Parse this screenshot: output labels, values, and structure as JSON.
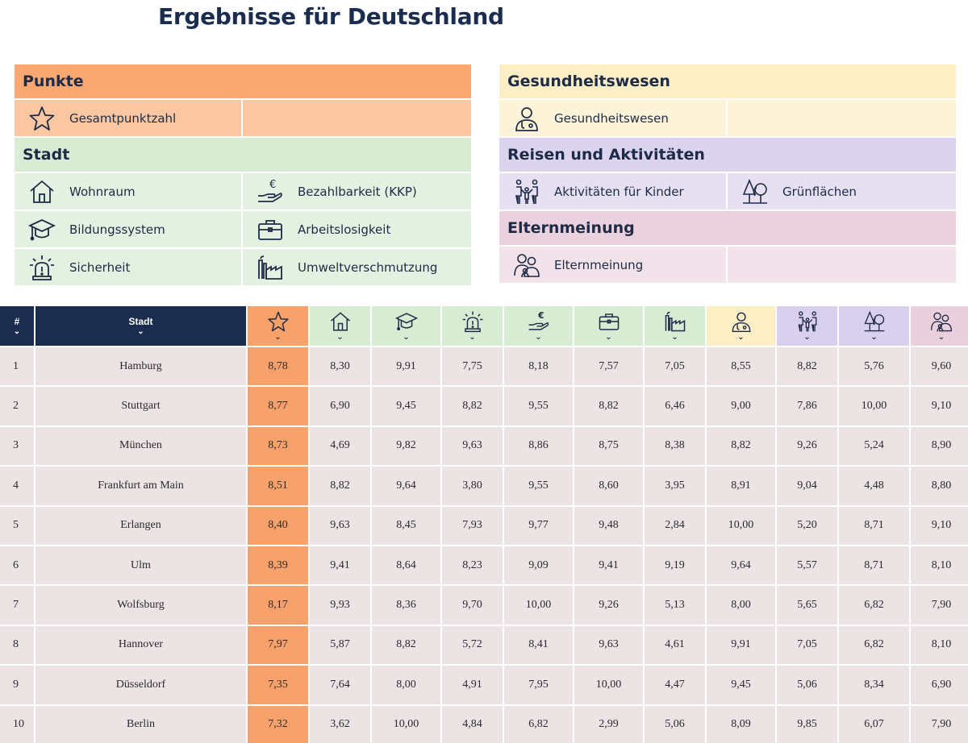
{
  "title": "Ergebnisse für Deutschland",
  "legend": {
    "punkte": {
      "heading": "Punkte",
      "items": [
        "Gesamtpunktzahl"
      ]
    },
    "stadt": {
      "heading": "Stadt",
      "items": [
        "Wohnraum",
        "Bezahlbarkeit (KKP)",
        "Bildungssystem",
        "Arbeitslosigkeit",
        "Sicherheit",
        "Umweltverschmutzung"
      ]
    },
    "gesundheit": {
      "heading": "Gesundheitswesen",
      "items": [
        "Gesundheitswesen"
      ]
    },
    "reisen": {
      "heading": "Reisen und Aktivitäten",
      "items": [
        "Aktivitäten für Kinder",
        "Grünflächen"
      ]
    },
    "eltern": {
      "heading": "Elternmeinung",
      "items": [
        "Elternmeinung"
      ]
    }
  },
  "table": {
    "header": {
      "rank": "#",
      "city": "Stadt",
      "chevron": "⌄"
    },
    "columns": [
      "star-icon",
      "house-icon",
      "graduation-cap-icon",
      "alarm-light-icon",
      "euro-hand-icon",
      "briefcase-icon",
      "factory-icon",
      "doctor-icon",
      "family-icon",
      "trees-icon",
      "parents-icon"
    ],
    "rows": [
      {
        "rank": "1",
        "city": "Hamburg",
        "values": [
          "8,78",
          "8,30",
          "9,91",
          "7,75",
          "8,18",
          "7,57",
          "7,05",
          "8,55",
          "8,82",
          "5,76",
          "9,60"
        ]
      },
      {
        "rank": "2",
        "city": "Stuttgart",
        "values": [
          "8,77",
          "6,90",
          "9,45",
          "8,82",
          "9,55",
          "8,82",
          "6,46",
          "9,00",
          "7,86",
          "10,00",
          "9,10"
        ]
      },
      {
        "rank": "3",
        "city": "München",
        "values": [
          "8,73",
          "4,69",
          "9,82",
          "9,63",
          "8,86",
          "8,75",
          "8,38",
          "8,82",
          "9,26",
          "5,24",
          "8,90"
        ]
      },
      {
        "rank": "4",
        "city": "Frankfurt am Main",
        "values": [
          "8,51",
          "8,82",
          "9,64",
          "3,80",
          "9,55",
          "8,60",
          "3,95",
          "8,91",
          "9,04",
          "4,48",
          "8,80"
        ]
      },
      {
        "rank": "5",
        "city": "Erlangen",
        "values": [
          "8,40",
          "9,63",
          "8,45",
          "7,93",
          "9,77",
          "9,48",
          "2,84",
          "10,00",
          "5,20",
          "8,71",
          "9,10"
        ]
      },
      {
        "rank": "6",
        "city": "Ulm",
        "values": [
          "8,39",
          "9,41",
          "8,64",
          "8,23",
          "9,09",
          "9,41",
          "9,19",
          "9,64",
          "5,57",
          "8,71",
          "8,10"
        ]
      },
      {
        "rank": "7",
        "city": "Wolfsburg",
        "values": [
          "8,17",
          "9,93",
          "8,36",
          "9,70",
          "10,00",
          "9,26",
          "5,13",
          "8,00",
          "5,65",
          "6,82",
          "7,90"
        ]
      },
      {
        "rank": "8",
        "city": "Hannover",
        "values": [
          "7,97",
          "5,87",
          "8,82",
          "5,72",
          "8,41",
          "9,63",
          "4,61",
          "9,91",
          "7,05",
          "6,82",
          "8,10"
        ]
      },
      {
        "rank": "9",
        "city": "Düsseldorf",
        "values": [
          "7,35",
          "7,64",
          "8,00",
          "4,91",
          "7,95",
          "10,00",
          "4,47",
          "9,45",
          "5,06",
          "8,34",
          "6,90"
        ]
      },
      {
        "rank": "10",
        "city": "Berlin",
        "values": [
          "7,32",
          "3,62",
          "10,00",
          "4,84",
          "6,82",
          "2,99",
          "5,06",
          "8,09",
          "9,85",
          "6,07",
          "7,90"
        ]
      }
    ]
  },
  "colors": {
    "navy": "#1b2d4f",
    "punkte": "#f9a16a",
    "stadt": "#d8ebd3",
    "gesundheit": "#fdeec5",
    "reisen": "#d9d0ee",
    "eltern": "#ead0dc",
    "cell": "#ece4e4"
  }
}
